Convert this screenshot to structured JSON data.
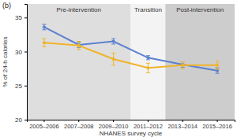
{
  "chart_data": {
    "type": "line",
    "title": "(b)",
    "x_label": "NHANES survey cycle",
    "y_label": "% of 24-h calories",
    "categories": [
      "2005–2006",
      "2007–2008",
      "2009–2010",
      "2011–2012",
      "2013–2014",
      "2015–2016"
    ],
    "ylim": [
      20,
      37
    ],
    "yticks": [
      20,
      25,
      30,
      35
    ],
    "grid": false,
    "marker": "circle",
    "regions": [
      {
        "label": "Pre-intervention",
        "from": "2005–2006",
        "to": "2009–2010",
        "color": "#dedede"
      },
      {
        "label": "Transition",
        "from": "2011–2012",
        "to": "2011–2012",
        "color": "#f3f3f3"
      },
      {
        "label": "Post-intervention",
        "from": "2013–2014",
        "to": "2015–2016",
        "color": "#cdcdcd"
      }
    ],
    "series": [
      {
        "color": "#5b80cf",
        "values": [
          33.6,
          31.0,
          31.5,
          29.1,
          28.1,
          27.2
        ],
        "errors": [
          0.4,
          0.4,
          0.4,
          0.3,
          0.4,
          0.4
        ]
      },
      {
        "color": "#f0b429",
        "values": [
          31.3,
          30.9,
          28.9,
          27.6,
          28.0,
          28.0
        ],
        "errors": [
          0.6,
          0.6,
          0.9,
          0.7,
          0.5,
          0.6
        ]
      }
    ]
  }
}
